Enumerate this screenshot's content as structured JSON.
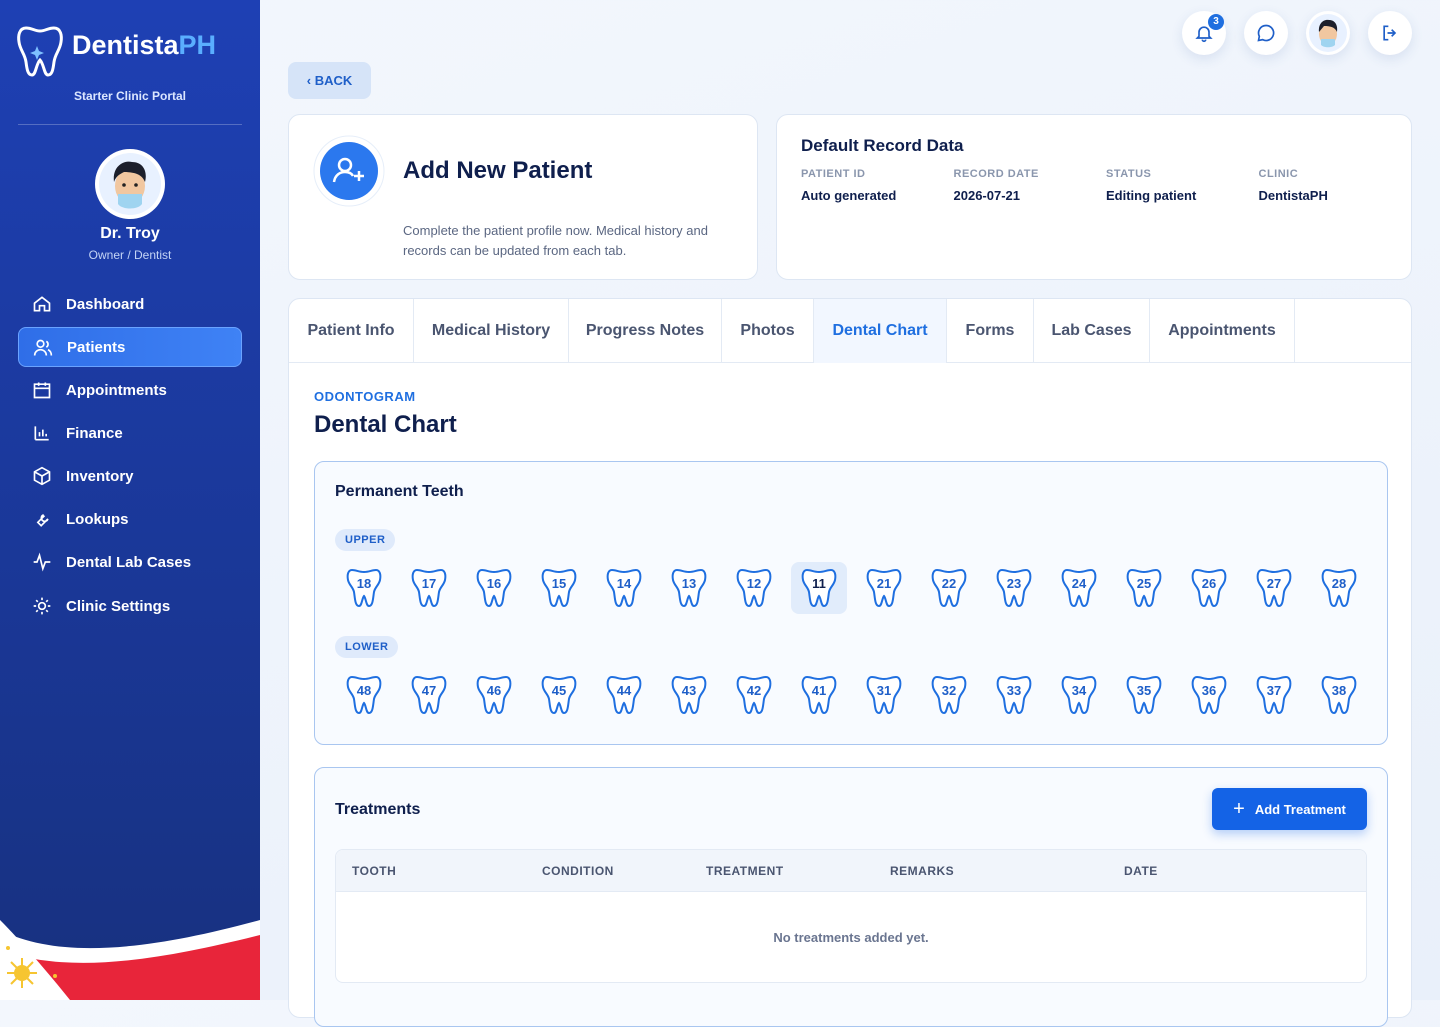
{
  "sidebar": {
    "brand": {
      "main": "Dentista",
      "accent": "PH"
    },
    "subtitle": "Starter Clinic Portal",
    "user": {
      "name": "Dr. Troy",
      "role": "Owner / Dentist"
    },
    "nav": [
      "Dashboard",
      "Patients",
      "Appointments",
      "Finance",
      "Inventory",
      "Lookups",
      "Dental Lab Cases",
      "Clinic Settings"
    ],
    "active_nav": "Patients"
  },
  "topbar": {
    "notifications": "3"
  },
  "back": "‹ BACK",
  "patient_card": {
    "title": "Add New Patient",
    "description": "Complete the patient profile now. Medical history and records can be updated from each tab."
  },
  "record_card": {
    "title": "Default Record Data",
    "fields": [
      {
        "label": "PATIENT ID",
        "value": "Auto generated"
      },
      {
        "label": "RECORD DATE",
        "value": "2026-07-21"
      },
      {
        "label": "STATUS",
        "value": "Editing patient"
      },
      {
        "label": "CLINIC",
        "value": "DentistaPH"
      }
    ]
  },
  "tabs": [
    "Patient Info",
    "Medical History",
    "Progress Notes",
    "Photos",
    "Dental Chart",
    "Forms",
    "Lab Cases",
    "Appointments"
  ],
  "active_tab": "Dental Chart",
  "section": {
    "eyebrow": "ODONTOGRAM",
    "title": "Dental Chart"
  },
  "teeth_panel": {
    "title": "Permanent Teeth",
    "selected": "11",
    "rows": [
      {
        "label": "UPPER",
        "teeth": [
          "18",
          "17",
          "16",
          "15",
          "14",
          "13",
          "12",
          "11",
          "21",
          "22",
          "23",
          "24",
          "25",
          "26",
          "27",
          "28"
        ]
      },
      {
        "label": "LOWER",
        "teeth": [
          "48",
          "47",
          "46",
          "45",
          "44",
          "43",
          "42",
          "41",
          "31",
          "32",
          "33",
          "34",
          "35",
          "36",
          "37",
          "38"
        ]
      }
    ]
  },
  "treatments": {
    "title": "Treatments",
    "button": "Add Treatment",
    "columns": [
      "TOOTH",
      "CONDITION",
      "TREATMENT",
      "REMARKS",
      "DATE"
    ],
    "empty": "No treatments added yet."
  }
}
